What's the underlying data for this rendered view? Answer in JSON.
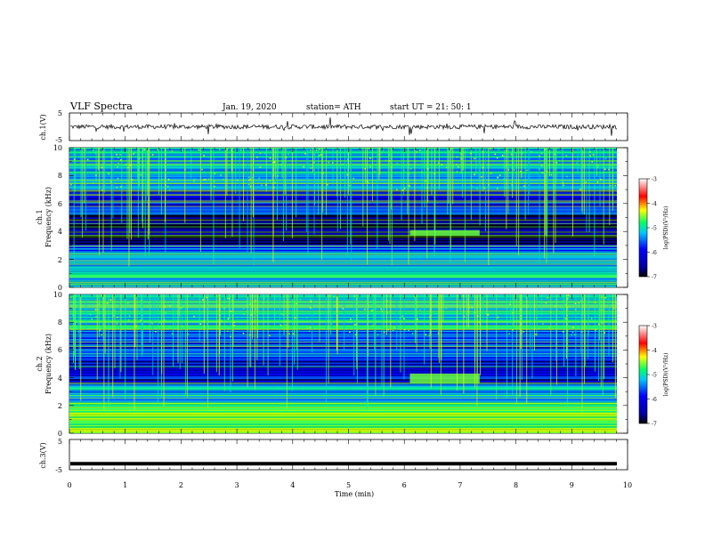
{
  "header": {
    "title": "VLF  Spectra",
    "date": "Jan. 19, 2020",
    "station": "station= ATH",
    "start": "start  UT  =    21: 50: 1"
  },
  "chart_data": [
    {
      "type": "line",
      "panel": "ch1-waveform",
      "ylabel": "ch.1(V)",
      "yticks": [
        "5",
        "-5"
      ],
      "ylim": [
        -5,
        5
      ],
      "xlim": [
        0,
        10
      ],
      "note": "noisy trace centred near 0 V from 0 to ~9.8 min"
    },
    {
      "type": "heatmap",
      "panel": "ch1-spectrogram",
      "ylabel_line1": "ch.1",
      "ylabel_line2": "Frequency  (kHz)",
      "yticks": [
        "10",
        "8",
        "6",
        "4",
        "2",
        "0"
      ],
      "ylim": [
        0,
        10
      ],
      "xlim": [
        0,
        10
      ],
      "features": [
        {
          "kind": "band",
          "y0": 0,
          "y1": 2.5,
          "level": -5.5
        },
        {
          "kind": "band",
          "y0": 2.5,
          "y1": 3.0,
          "level": -5.9
        },
        {
          "kind": "band",
          "y0": 3.0,
          "y1": 5.2,
          "level": -6.7
        },
        {
          "kind": "band",
          "y0": 5.2,
          "y1": 7.0,
          "level": -6.2
        },
        {
          "kind": "band",
          "y0": 7.0,
          "y1": 10,
          "level": -5.6
        },
        {
          "kind": "patch",
          "x0": 6.1,
          "x1": 7.35,
          "y0": 3.7,
          "y1": 4.1,
          "level": -5.0
        }
      ]
    },
    {
      "type": "heatmap",
      "panel": "ch2-spectrogram",
      "ylabel_line1": "ch.2",
      "ylabel_line2": "Frequency  (kHz)",
      "yticks": [
        "10",
        "8",
        "6",
        "4",
        "2",
        "0"
      ],
      "ylim": [
        0,
        10
      ],
      "xlim": [
        0,
        10
      ],
      "features": [
        {
          "kind": "band",
          "y0": 0,
          "y1": 2.2,
          "level": -5.0
        },
        {
          "kind": "band",
          "y0": 2.2,
          "y1": 3.5,
          "level": -5.7
        },
        {
          "kind": "band",
          "y0": 3.5,
          "y1": 5.5,
          "level": -6.3
        },
        {
          "kind": "band",
          "y0": 5.5,
          "y1": 7.5,
          "level": -6.0
        },
        {
          "kind": "band",
          "y0": 7.5,
          "y1": 10,
          "level": -5.5
        },
        {
          "kind": "patch",
          "x0": 6.1,
          "x1": 7.35,
          "y0": 3.6,
          "y1": 4.3,
          "level": -5.0
        }
      ]
    },
    {
      "type": "line",
      "panel": "ch3-waveform",
      "ylabel": "ch.3(V)",
      "yticks": [
        "5",
        "-5"
      ],
      "ylim": [
        -5,
        5
      ],
      "xlim": [
        0,
        10
      ],
      "xlabel": "Time  (min)",
      "xticks": [
        "0",
        "1",
        "2",
        "3",
        "4",
        "5",
        "6",
        "7",
        "8",
        "9",
        "10"
      ],
      "note": "flat trace at about -3 V from 0 to ~9.8 min"
    }
  ],
  "colorbar": {
    "label": "log(PSD)(V²/Hz)",
    "ticks": [
      "-3",
      "-4",
      "-5",
      "-6",
      "-7"
    ],
    "range": [
      -7,
      -3
    ],
    "colors": [
      "#000000",
      "#0000ff",
      "#00c8ff",
      "#00ff64",
      "#ffff00",
      "#ff0000",
      "#ffffff"
    ]
  }
}
